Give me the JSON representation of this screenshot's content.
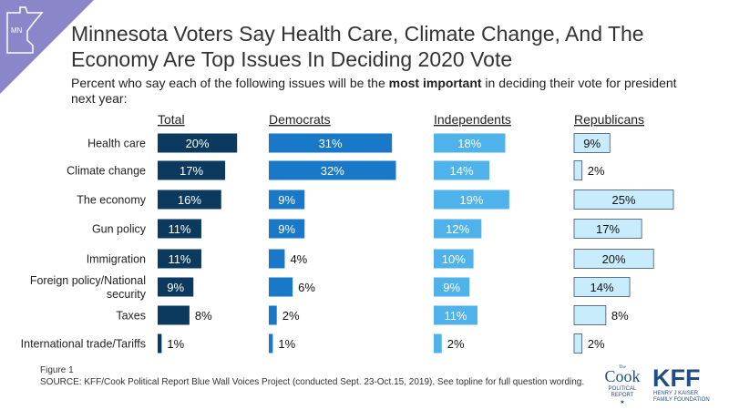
{
  "state_badge": "MN",
  "title": "Minnesota Voters Say Health Care, Climate Change, And The Economy Are Top Issues In Deciding 2020 Vote",
  "subtitle_before": "Percent who say each of the following issues will be the ",
  "subtitle_bold": "most important",
  "subtitle_after": " in deciding their vote for president next year:",
  "figure_label": "Figure 1",
  "source": "SOURCE: KFF/Cook Political Report Blue Wall Voices Project (conducted Sept. 23-Oct.15, 2019). See topline for full question wording.",
  "logos": {
    "cook_small": "The",
    "cook_main": "Cook",
    "cook_sub1": "POLITICAL",
    "cook_sub2": "REPORT",
    "kff_main": "KFF",
    "kff_sub1": "HENRY J KAISER",
    "kff_sub2": "FAMILY FOUNDATION"
  },
  "colors": {
    "total": "#0b3a5e",
    "democrats": "#1a78c8",
    "independents": "#4fb2ea",
    "republicans": "#c8ecfc"
  },
  "chart_data": {
    "type": "bar",
    "orientation": "horizontal",
    "categories": [
      "Health care",
      "Climate change",
      "The economy",
      "Gun policy",
      "Immigration",
      "Foreign policy/National security",
      "Taxes",
      "International trade/Tariffs"
    ],
    "series": [
      {
        "name": "Total",
        "values": [
          20,
          17,
          16,
          11,
          11,
          9,
          8,
          1
        ]
      },
      {
        "name": "Democrats",
        "values": [
          31,
          32,
          9,
          9,
          4,
          6,
          2,
          1
        ]
      },
      {
        "name": "Independents",
        "values": [
          18,
          14,
          19,
          12,
          10,
          9,
          11,
          2
        ]
      },
      {
        "name": "Republicans",
        "values": [
          9,
          2,
          25,
          17,
          20,
          14,
          8,
          2
        ]
      }
    ],
    "value_suffix": "%"
  }
}
